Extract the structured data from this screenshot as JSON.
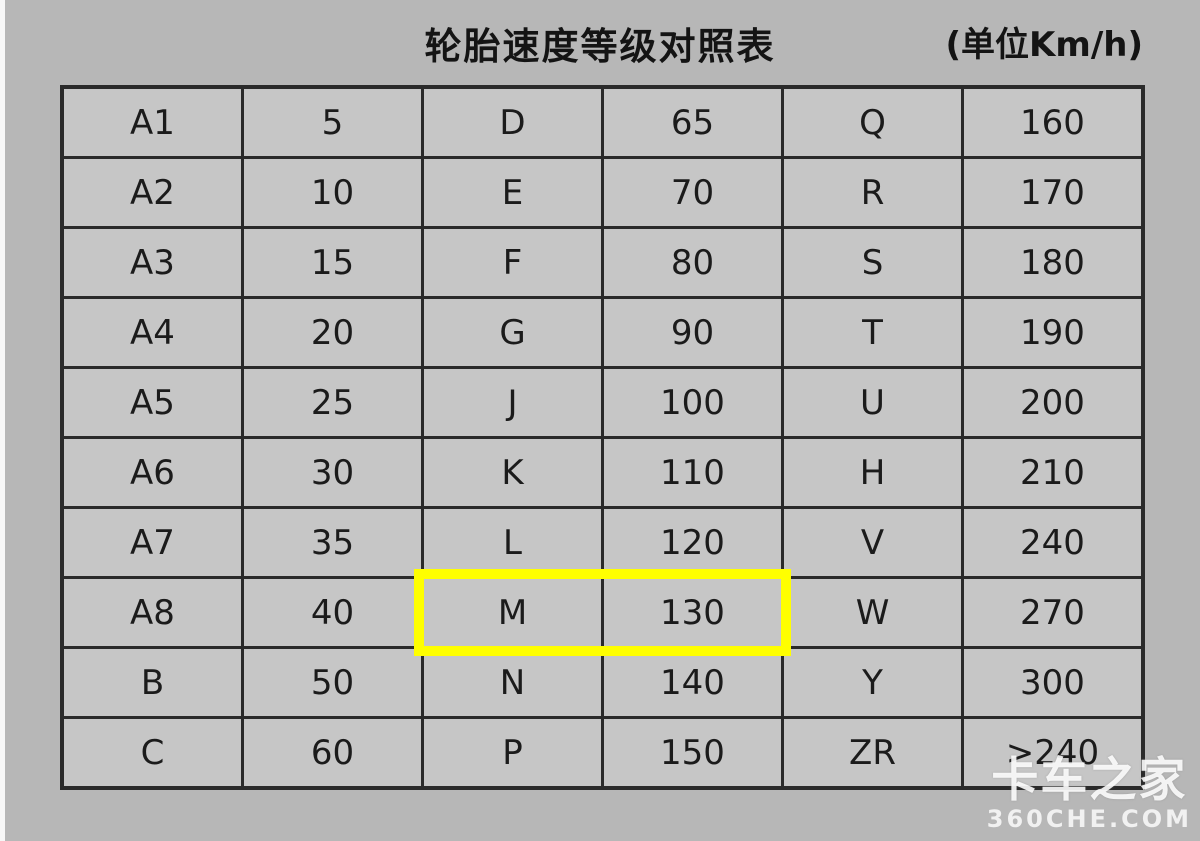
{
  "page": {
    "title": "轮胎速度等级对照表",
    "unit_label": "(单位Km/h)",
    "colors": {
      "background": "#b7b7b7",
      "cell_fill": "#c6c6c6",
      "grid_line": "#2a2a2a",
      "text": "#1b1b1b",
      "highlight": "#ffff00"
    }
  },
  "watermark": {
    "brand": "卡车之家",
    "site": "360CHE.COM"
  },
  "highlight": {
    "row_index": 7,
    "col_start": 2,
    "col_end": 3,
    "cells": [
      "M",
      "130"
    ],
    "color": "#ffff00"
  },
  "chart_data": {
    "type": "table",
    "title": "轮胎速度等级对照表",
    "unit": "Km/h",
    "grid": "on",
    "has_header_row": false,
    "rows": [
      [
        "A1",
        "5",
        "D",
        "65",
        "Q",
        "160"
      ],
      [
        "A2",
        "10",
        "E",
        "70",
        "R",
        "170"
      ],
      [
        "A3",
        "15",
        "F",
        "80",
        "S",
        "180"
      ],
      [
        "A4",
        "20",
        "G",
        "90",
        "T",
        "190"
      ],
      [
        "A5",
        "25",
        "J",
        "100",
        "U",
        "200"
      ],
      [
        "A6",
        "30",
        "K",
        "110",
        "H",
        "210"
      ],
      [
        "A7",
        "35",
        "L",
        "120",
        "V",
        "240"
      ],
      [
        "A8",
        "40",
        "M",
        "130",
        "W",
        "270"
      ],
      [
        "B",
        "50",
        "N",
        "140",
        "Y",
        "300"
      ],
      [
        "C",
        "60",
        "P",
        "150",
        "ZR",
        ">240"
      ]
    ],
    "speed_ratings": {
      "A1": "5",
      "A2": "10",
      "A3": "15",
      "A4": "20",
      "A5": "25",
      "A6": "30",
      "A7": "35",
      "A8": "40",
      "B": "50",
      "C": "60",
      "D": "65",
      "E": "70",
      "F": "80",
      "G": "90",
      "J": "100",
      "K": "110",
      "L": "120",
      "M": "130",
      "N": "140",
      "P": "150",
      "Q": "160",
      "R": "170",
      "S": "180",
      "T": "190",
      "U": "200",
      "H": "210",
      "V": "240",
      "W": "270",
      "Y": "300",
      "ZR": ">240"
    },
    "highlighted": {
      "row_index": 7,
      "values": [
        "M",
        "130"
      ]
    }
  }
}
